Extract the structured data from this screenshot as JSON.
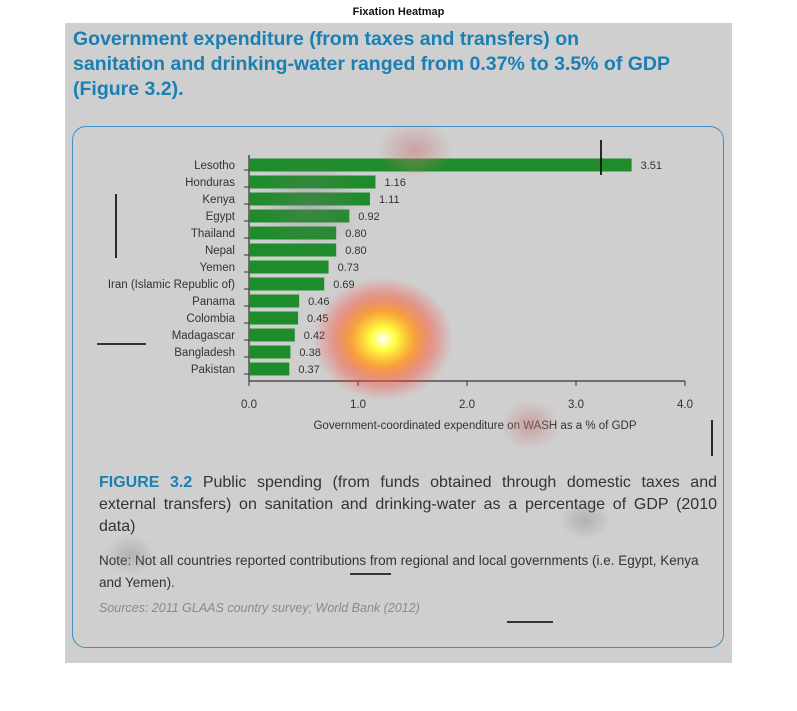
{
  "figure_title": "Fixation Heatmap",
  "headline": "Government expenditure (from taxes and transfers) on sanitation and drinking-water ranged from 0.37% to 3.5% of GDP (Figure 3.2).",
  "caption": {
    "label": "FIGURE 3.2",
    "text": " Public spending (from funds obtained through domestic taxes and external transfers) on sanitation and drinking-water as a percentage of GDP (2010 data)"
  },
  "note": "Note: Not all countries reported contributions from regional and local governments (i.e. Egypt, Kenya and Yemen).",
  "sources": "Sources: 2011 GLAAS country survey; World Bank (2012)",
  "colors": {
    "bar": "#1e8c2a",
    "headline": "#1a7fb3",
    "border": "#3d8fc4",
    "panel": "#cfcfcf"
  },
  "chart_data": {
    "type": "bar",
    "orientation": "horizontal",
    "categories": [
      "Lesotho",
      "Honduras",
      "Kenya",
      "Egypt",
      "Thailand",
      "Nepal",
      "Yemen",
      "Iran (Islamic Republic of)",
      "Panama",
      "Colombia",
      "Madagascar",
      "Bangladesh",
      "Pakistan"
    ],
    "values": [
      3.51,
      1.16,
      1.11,
      0.92,
      0.8,
      0.8,
      0.73,
      0.69,
      0.46,
      0.45,
      0.42,
      0.38,
      0.37
    ],
    "value_labels": [
      "3.51",
      "1.16",
      "1.11",
      "0.92",
      "0.80",
      "0.80",
      "0.73",
      "0.69",
      "0.46",
      "0.45",
      "0.42",
      "0.38",
      "0.37"
    ],
    "xlabel": "Government-coordinated expenditure on WASH as a % of GDP",
    "xlim": [
      0,
      4
    ],
    "xticks": [
      0,
      1,
      2,
      3,
      4
    ],
    "xtick_labels": [
      "0.0",
      "1.0",
      "2.0",
      "3.0",
      "4.0"
    ],
    "grid": false
  }
}
